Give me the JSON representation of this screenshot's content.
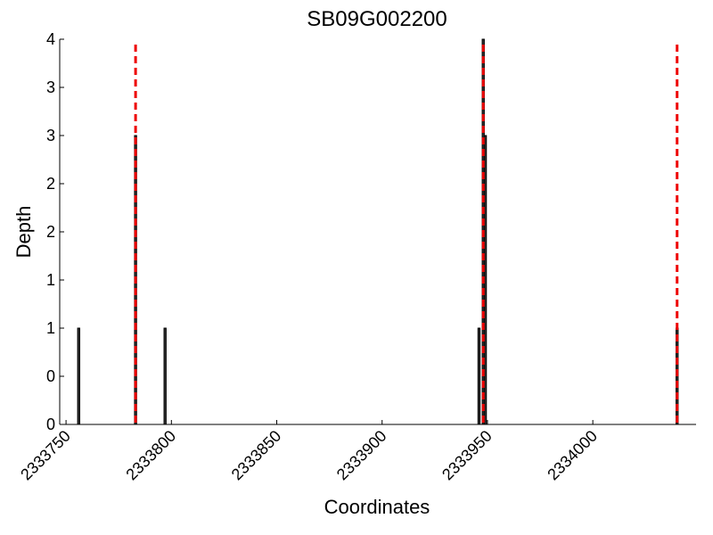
{
  "chart_data": {
    "type": "bar",
    "title": "SB09G002200",
    "x_label": "Coordinates",
    "y_label": "Depth",
    "x": [
      2333756,
      2333783,
      2333797,
      2333946,
      2333948,
      2333949,
      2334040
    ],
    "values": [
      1,
      3,
      1,
      1,
      4,
      3,
      1
    ],
    "color": "#333333",
    "edge_color": "#000000",
    "vlines": [
      2333783,
      2333948,
      2334040
    ],
    "vline_color": "#ee0000",
    "xlim": [
      2333747,
      2334049
    ],
    "xticks": [
      2333750,
      2333800,
      2333850,
      2333900,
      2333950,
      2334000
    ],
    "ylim": [
      0,
      4
    ],
    "yticks": [
      0,
      {
        "value": 0.5,
        "label": "0"
      },
      1,
      {
        "value": 1.5,
        "label": "1"
      },
      2,
      {
        "value": 2.5,
        "label": "2"
      },
      3,
      {
        "value": 3.5,
        "label": "3"
      },
      4
    ]
  }
}
